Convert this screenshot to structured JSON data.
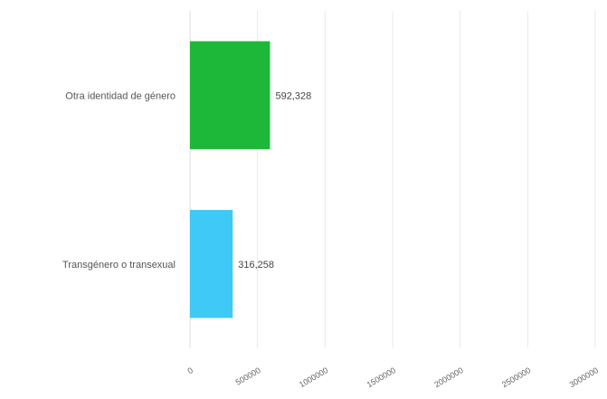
{
  "chart_data": {
    "type": "bar",
    "orientation": "horizontal",
    "categories": [
      "Otra identidad de género",
      "Transgénero o transexual"
    ],
    "values": [
      592328,
      316258
    ],
    "value_labels": [
      "592,328",
      "316,258"
    ],
    "colors": [
      "#1db83a",
      "#3ec9f6"
    ],
    "xlim": [
      0,
      3000000
    ],
    "xticks": [
      "0",
      "500000",
      "1000000",
      "1500000",
      "2000000",
      "2500000",
      "3000000"
    ],
    "title": "",
    "xlabel": "",
    "ylabel": "",
    "grid": true,
    "legend": "none"
  }
}
